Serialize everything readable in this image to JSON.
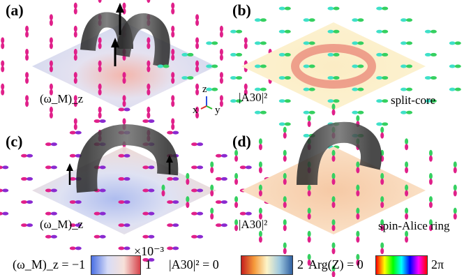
{
  "panels": [
    {
      "id": "a",
      "label": "(a)",
      "field_label": "(ω_M)_z"
    },
    {
      "id": "b",
      "label": "(b)",
      "field_label": "|A30|²",
      "annotation": "split-core"
    },
    {
      "id": "c",
      "label": "(c)",
      "field_label": "(ω_M)_z"
    },
    {
      "id": "d",
      "label": "(d)",
      "field_label": "|A30|²",
      "annotation": "spin-Alice ring"
    }
  ],
  "axes_triad": {
    "z": "z",
    "x": "x",
    "y": "y"
  },
  "colorbars": [
    {
      "name": "vorticity",
      "label_left": "(ω_M)_z = −1",
      "label_right": "1",
      "exponent": "×10⁻³",
      "colors": [
        "#4a6fe3",
        "#d7dcf7",
        "#f7e1d9",
        "#d6434b"
      ]
    },
    {
      "name": "amplitude",
      "label_left": "|A30|² = 0",
      "label_right": "2",
      "colors": [
        "#c41e1e",
        "#f59a3a",
        "#fdf5c9",
        "#9fc9e0",
        "#2f5fa0"
      ]
    },
    {
      "name": "phase",
      "label_left": "Arg(Z) = 0",
      "label_right": "2π",
      "colors": [
        "#ff0000",
        "#ffff00",
        "#00ff00",
        "#00ffff",
        "#0000ff",
        "#ff00ff",
        "#ff0000"
      ]
    }
  ],
  "colors": {
    "magenta": "#e0208a",
    "yellow": "#e8d020",
    "green": "#35d060",
    "cyan": "#3fe0c8",
    "purple": "#8a2ad0",
    "orange": "#ff9a30",
    "tube": "#3a3a3a"
  }
}
